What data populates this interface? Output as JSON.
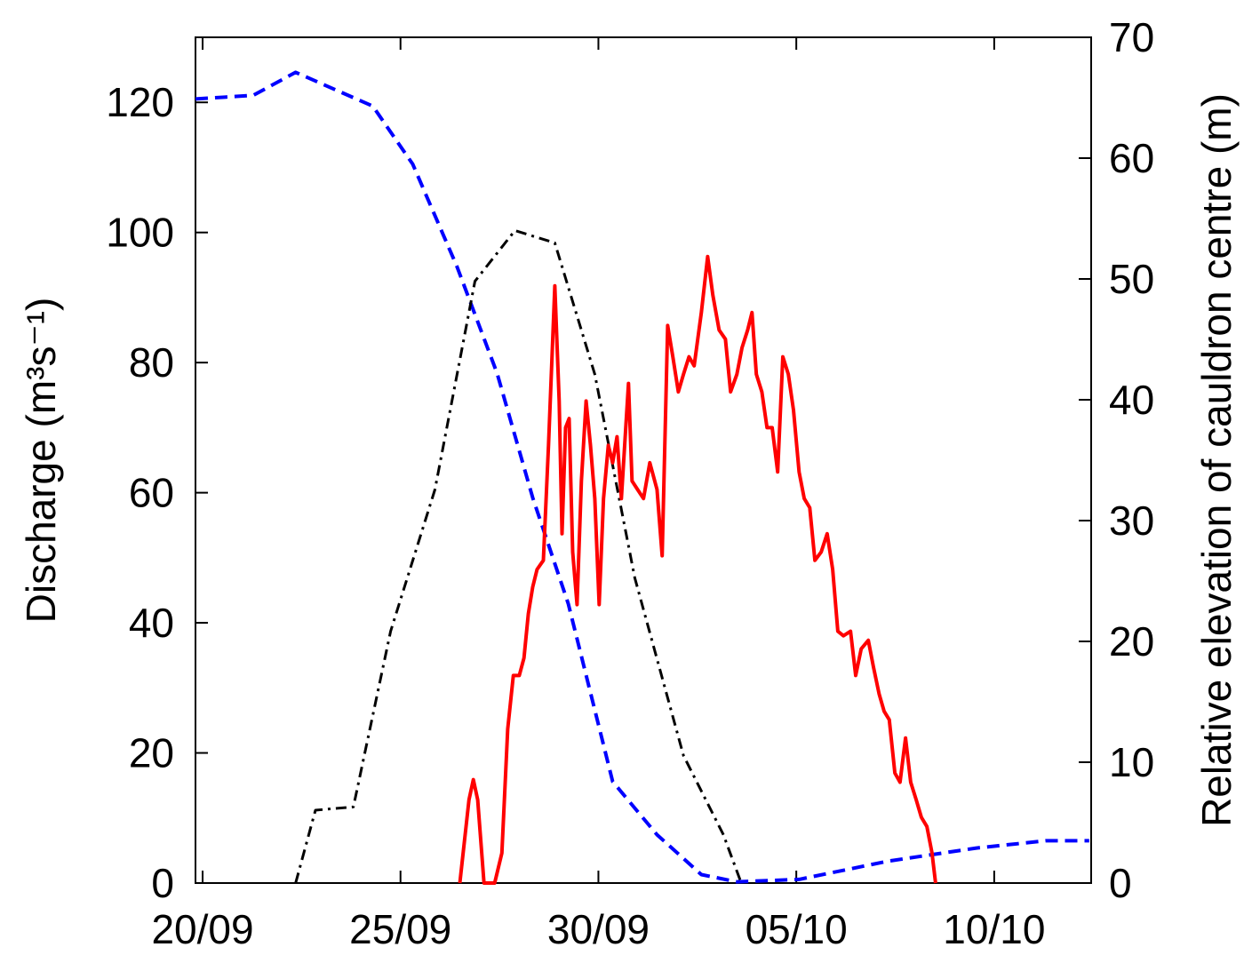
{
  "chart_data": {
    "type": "line",
    "y_label": "Discharge (m³s⁻¹)",
    "y2_label": "Relative elevation of cauldron centre (m)",
    "xlim": [
      -0.18,
      22.45
    ],
    "xticks": [
      {
        "value": 0,
        "label": "20/09"
      },
      {
        "value": 5,
        "label": "25/09"
      },
      {
        "value": 10,
        "label": "30/09"
      },
      {
        "value": 15,
        "label": "05/10"
      },
      {
        "value": 20,
        "label": "10/10"
      }
    ],
    "ylim": [
      0,
      130
    ],
    "yticks": [
      0,
      20,
      40,
      60,
      80,
      100,
      120
    ],
    "y2lim": [
      0,
      70
    ],
    "y2ticks": [
      0,
      10,
      20,
      30,
      40,
      50,
      60,
      70
    ],
    "series": [
      {
        "color": "#0000ff",
        "style": "dashed",
        "axis": "y2",
        "x": [
          -0.18,
          1.28,
          2.35,
          4.3,
          5.31,
          6.43,
          7.44,
          8.34,
          9.24,
          10.36,
          11.48,
          12.6,
          13.5,
          15.07,
          17.3,
          19.55,
          21.3,
          22.4
        ],
        "values": [
          64.9,
          65.2,
          67.1,
          64.3,
          59.5,
          51.0,
          42.2,
          31.9,
          23.1,
          8.4,
          4.0,
          0.7,
          0.1,
          0.3,
          1.8,
          2.9,
          3.5,
          3.5
        ]
      },
      {
        "color": "#000000",
        "style": "dashdot",
        "x": [
          2.35,
          2.85,
          3.81,
          4.75,
          5.87,
          6.88,
          7.89,
          8.9,
          9.91,
          10.92,
          12.15,
          13.16,
          13.61
        ],
        "values": [
          0,
          11.2,
          11.7,
          38.7,
          60.5,
          92.5,
          100.3,
          98.4,
          78.2,
          46.9,
          19.6,
          7.4,
          0
        ]
      },
      {
        "color": "#ff0000",
        "style": "solid",
        "x": [
          6.5,
          6.73,
          6.84,
          6.95,
          7.11,
          7.38,
          7.56,
          7.71,
          7.85,
          8.0,
          8.12,
          8.23,
          8.34,
          8.45,
          8.61,
          8.74,
          8.9,
          9.01,
          9.08,
          9.17,
          9.26,
          9.35,
          9.46,
          9.57,
          9.69,
          9.8,
          9.91,
          10.02,
          10.13,
          10.25,
          10.36,
          10.47,
          10.58,
          10.76,
          10.85,
          10.99,
          11.14,
          11.3,
          11.48,
          11.61,
          11.75,
          11.88,
          12.02,
          12.15,
          12.29,
          12.42,
          12.6,
          12.76,
          12.89,
          13.05,
          13.21,
          13.34,
          13.5,
          13.63,
          13.77,
          13.88,
          13.99,
          14.13,
          14.26,
          14.39,
          14.53,
          14.66,
          14.8,
          14.93,
          15.07,
          15.2,
          15.34,
          15.47,
          15.63,
          15.78,
          15.92,
          16.05,
          16.19,
          16.37,
          16.5,
          16.64,
          16.82,
          16.95,
          17.09,
          17.22,
          17.35,
          17.49,
          17.62,
          17.76,
          17.89,
          18.03,
          18.16,
          18.3,
          18.43,
          18.52
        ],
        "values": [
          0,
          12.8,
          15.9,
          12.8,
          0,
          0,
          4.6,
          23.7,
          31.9,
          31.9,
          34.6,
          41.4,
          45.5,
          48.2,
          49.6,
          67.3,
          91.8,
          74.1,
          53.7,
          70.0,
          71.4,
          50.9,
          42.8,
          61.8,
          74.1,
          67.3,
          59.1,
          42.8,
          59.1,
          67.3,
          64.6,
          68.6,
          59.1,
          76.8,
          61.8,
          60.5,
          59.1,
          64.6,
          60.5,
          50.3,
          85.7,
          80.9,
          75.5,
          78.2,
          80.9,
          79.5,
          87.7,
          96.3,
          90.4,
          85.0,
          83.6,
          75.5,
          78.2,
          82.3,
          85.0,
          87.7,
          78.2,
          75.5,
          70.0,
          70.0,
          63.2,
          80.9,
          78.2,
          72.7,
          63.2,
          59.1,
          57.7,
          49.6,
          50.9,
          53.7,
          48.2,
          38.7,
          38.0,
          38.7,
          31.9,
          36.0,
          37.3,
          33.2,
          29.1,
          26.4,
          25.1,
          16.9,
          15.5,
          22.3,
          15.5,
          12.8,
          10.1,
          8.7,
          4.6,
          0
        ]
      }
    ]
  }
}
